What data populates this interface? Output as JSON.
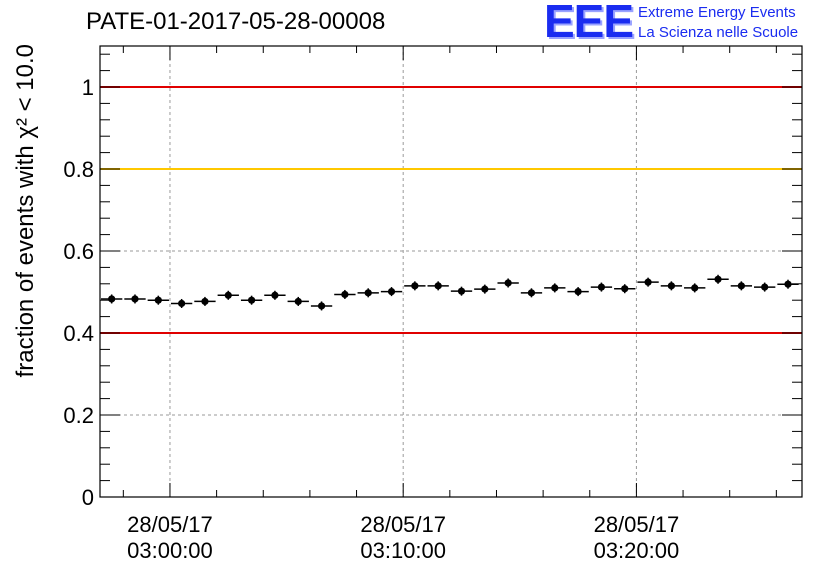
{
  "title": "PATE-01-2017-05-28-00008",
  "logo": {
    "mark": "EEE",
    "line1": "Extreme Energy Events",
    "line2": "La Scienza nelle Scuole"
  },
  "chart_data": {
    "type": "scatter",
    "title": "PATE-01-2017-05-28-00008",
    "ylabel": "fraction of events with χ² < 10.0",
    "xlabel": "",
    "ylim": [
      0,
      1.1
    ],
    "yticks": [
      0,
      0.2,
      0.4,
      0.6,
      0.8,
      1
    ],
    "ytick_labels": [
      "0",
      "0.2",
      "0.4",
      "0.6",
      "0.8",
      "1"
    ],
    "xlim_minutes": [
      -3,
      27.1
    ],
    "xticks": [
      {
        "minute": 0,
        "line1": "28/05/17",
        "line2": "03:00:00"
      },
      {
        "minute": 10,
        "line1": "28/05/17",
        "line2": "03:10:00"
      },
      {
        "minute": 20,
        "line1": "28/05/17",
        "line2": "03:20:00"
      }
    ],
    "grid": true,
    "reference_lines": [
      {
        "y": 1.0,
        "color": "#e00000"
      },
      {
        "y": 0.8,
        "color": "#ffc800"
      },
      {
        "y": 0.4,
        "color": "#e00000"
      }
    ],
    "series": [
      {
        "marker_color": "#000000",
        "x": [
          -2.5,
          -1.5,
          -0.5,
          0.5,
          1.5,
          2.5,
          3.5,
          4.5,
          5.5,
          6.5,
          7.5,
          8.5,
          9.5,
          10.5,
          11.5,
          12.5,
          13.5,
          14.5,
          15.5,
          16.5,
          17.5,
          18.5,
          19.5,
          20.5,
          21.5,
          22.5,
          23.5,
          24.5,
          25.5,
          26.5
        ],
        "y": [
          0.483,
          0.483,
          0.48,
          0.472,
          0.477,
          0.492,
          0.48,
          0.492,
          0.477,
          0.466,
          0.494,
          0.498,
          0.501,
          0.515,
          0.515,
          0.502,
          0.507,
          0.522,
          0.498,
          0.51,
          0.501,
          0.512,
          0.508,
          0.524,
          0.515,
          0.51,
          0.531,
          0.515,
          0.512,
          0.519
        ],
        "y_err": 0.011,
        "x_halfwidth": 0.5
      }
    ]
  }
}
